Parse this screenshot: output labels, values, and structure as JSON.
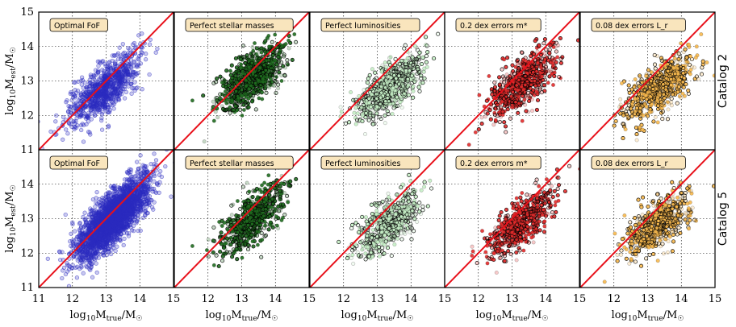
{
  "chart_data": {
    "type": "scatter",
    "x_range": [
      11,
      15
    ],
    "y_range": [
      11,
      15
    ],
    "x_ticks": [
      "11",
      "12",
      "13",
      "14",
      "15"
    ],
    "y_ticks": [
      "11",
      "12",
      "13",
      "14",
      "15"
    ],
    "xlabel": "log10 M_true / M_sun",
    "ylabel": "log10 M_est / M_sun",
    "grid": true,
    "reference_line": {
      "type": "one-to-one",
      "color": "#e8101a"
    },
    "row_labels": [
      "Catalog 2",
      "Catalog 5"
    ],
    "panel_labels": [
      "Optimal FoF",
      "Perfect stellar masses",
      "Perfect luminosities",
      "0.2 dex errors m*",
      "0.08 dex errors L_r"
    ],
    "label_box_color": "#f9e5bd",
    "series_colors": [
      {
        "name": "Optimal FoF",
        "color": "#2b2bbf"
      },
      {
        "name": "Perfect stellar masses",
        "color": "#1f6b1f"
      },
      {
        "name": "Perfect luminosities",
        "color": "#c6f0c6"
      },
      {
        "name": "0.2 dex errors m*",
        "color": "#e22b2b"
      },
      {
        "name": "0.08 dex errors L_r",
        "color": "#f8b94e"
      }
    ],
    "panels": [
      {
        "row": "Catalog 2",
        "label": "Optimal FoF",
        "points": {
          "n": 900,
          "x_center": 12.95,
          "y_center": 12.75,
          "x_spread": 0.5,
          "y_spread": 0.55
        }
      },
      {
        "row": "Catalog 2",
        "label": "Perfect stellar masses",
        "points": {
          "n": 800,
          "x_center": 13.3,
          "y_center": 13.1,
          "x_spread": 0.45,
          "y_spread": 0.45
        }
      },
      {
        "row": "Catalog 2",
        "label": "Perfect luminosities",
        "points": {
          "n": 700,
          "x_center": 13.35,
          "y_center": 12.8,
          "x_spread": 0.45,
          "y_spread": 0.45
        }
      },
      {
        "row": "Catalog 2",
        "label": "0.2 dex errors m*",
        "points": {
          "n": 700,
          "x_center": 13.3,
          "y_center": 12.95,
          "x_spread": 0.45,
          "y_spread": 0.5
        }
      },
      {
        "row": "Catalog 2",
        "label": "0.08 dex errors L_r",
        "points": {
          "n": 700,
          "x_center": 13.35,
          "y_center": 12.8,
          "x_spread": 0.45,
          "y_spread": 0.45
        }
      },
      {
        "row": "Catalog 5",
        "label": "Optimal FoF",
        "points": {
          "n": 2600,
          "x_center": 13.2,
          "y_center": 13.0,
          "x_spread": 0.5,
          "y_spread": 0.65
        }
      },
      {
        "row": "Catalog 5",
        "label": "Perfect stellar masses",
        "points": {
          "n": 650,
          "x_center": 13.3,
          "y_center": 13.0,
          "x_spread": 0.45,
          "y_spread": 0.5
        }
      },
      {
        "row": "Catalog 5",
        "label": "Perfect luminosities",
        "points": {
          "n": 550,
          "x_center": 13.3,
          "y_center": 12.85,
          "x_spread": 0.45,
          "y_spread": 0.45
        }
      },
      {
        "row": "Catalog 5",
        "label": "0.2 dex errors m*",
        "points": {
          "n": 600,
          "x_center": 13.25,
          "y_center": 12.85,
          "x_spread": 0.45,
          "y_spread": 0.5
        }
      },
      {
        "row": "Catalog 5",
        "label": "0.08 dex errors L_r",
        "points": {
          "n": 600,
          "x_center": 13.3,
          "y_center": 12.85,
          "x_spread": 0.45,
          "y_spread": 0.45
        }
      }
    ]
  }
}
